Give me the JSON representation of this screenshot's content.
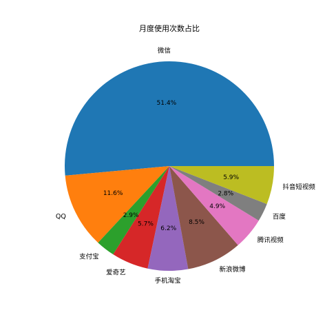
{
  "chart_data": {
    "type": "pie",
    "title": "月度使用次数占比",
    "start_angle_deg": 0,
    "direction": "counterclockwise",
    "slices": [
      {
        "label": "微信",
        "value": 51.4,
        "pct_text": "51.4%",
        "color": "#1f77b4"
      },
      {
        "label": "QQ",
        "value": 11.6,
        "pct_text": "11.6%",
        "color": "#ff7f0e"
      },
      {
        "label": "支付宝",
        "value": 2.9,
        "pct_text": "2.9%",
        "color": "#2ca02c"
      },
      {
        "label": "爱奇艺",
        "value": 5.7,
        "pct_text": "5.7%",
        "color": "#d62728"
      },
      {
        "label": "手机淘宝",
        "value": 6.2,
        "pct_text": "6.2%",
        "color": "#9467bd"
      },
      {
        "label": "新浪微博",
        "value": 8.5,
        "pct_text": "8.5%",
        "color": "#8c564b"
      },
      {
        "label": "腾讯视频",
        "value": 4.9,
        "pct_text": "4.9%",
        "color": "#e377c2"
      },
      {
        "label": "百度",
        "value": 2.8,
        "pct_text": "2.8%",
        "color": "#7f7f7f"
      },
      {
        "label": "抖音短视频",
        "value": 5.9,
        "pct_text": "5.9%",
        "color": "#bcbd22"
      }
    ]
  }
}
